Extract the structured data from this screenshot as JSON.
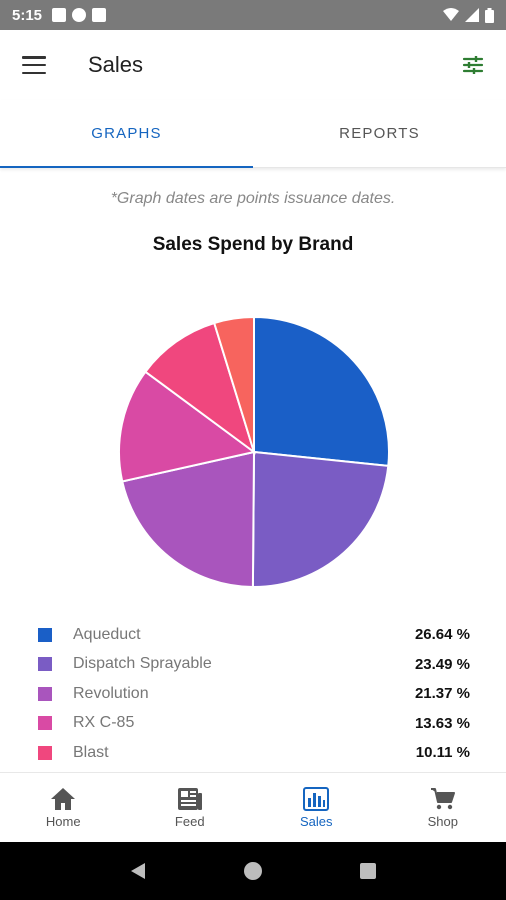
{
  "status_bar": {
    "time": "5:15"
  },
  "app_bar": {
    "title": "Sales"
  },
  "tabs": [
    {
      "label": "GRAPHS",
      "active": true
    },
    {
      "label": "REPORTS",
      "active": false
    }
  ],
  "note": "*Graph dates are points issuance dates.",
  "chart_data": {
    "type": "pie",
    "title": "Sales Spend by Brand",
    "slices": [
      {
        "name": "Aqueduct",
        "value": 26.64,
        "color": "#1a5fc7"
      },
      {
        "name": "Dispatch Sprayable",
        "value": 23.49,
        "color": "#7a5cc4"
      },
      {
        "name": "Revolution",
        "value": 21.37,
        "color": "#a955bd"
      },
      {
        "name": "RX C-85",
        "value": 13.63,
        "color": "#d94aa4"
      },
      {
        "name": "Blast",
        "value": 10.11,
        "color": "#f0477e"
      },
      {
        "name": "",
        "value": 4.76,
        "color": "#f7645e"
      }
    ]
  },
  "legend": {
    "items": [
      {
        "label": "Aqueduct",
        "value": "26.64 %",
        "color": "#1a5fc7"
      },
      {
        "label": "Dispatch Sprayable",
        "value": "23.49 %",
        "color": "#7a5cc4"
      },
      {
        "label": "Revolution",
        "value": "21.37 %",
        "color": "#a955bd"
      },
      {
        "label": "RX C-85",
        "value": "13.63 %",
        "color": "#d94aa4"
      },
      {
        "label": "Blast",
        "value": "10.11 %",
        "color": "#f0477e"
      }
    ]
  },
  "bottom_nav": [
    {
      "label": "Home",
      "icon": "home-icon",
      "active": false
    },
    {
      "label": "Feed",
      "icon": "feed-icon",
      "active": false
    },
    {
      "label": "Sales",
      "icon": "bar-chart-icon",
      "active": true
    },
    {
      "label": "Shop",
      "icon": "cart-icon",
      "active": false
    }
  ]
}
